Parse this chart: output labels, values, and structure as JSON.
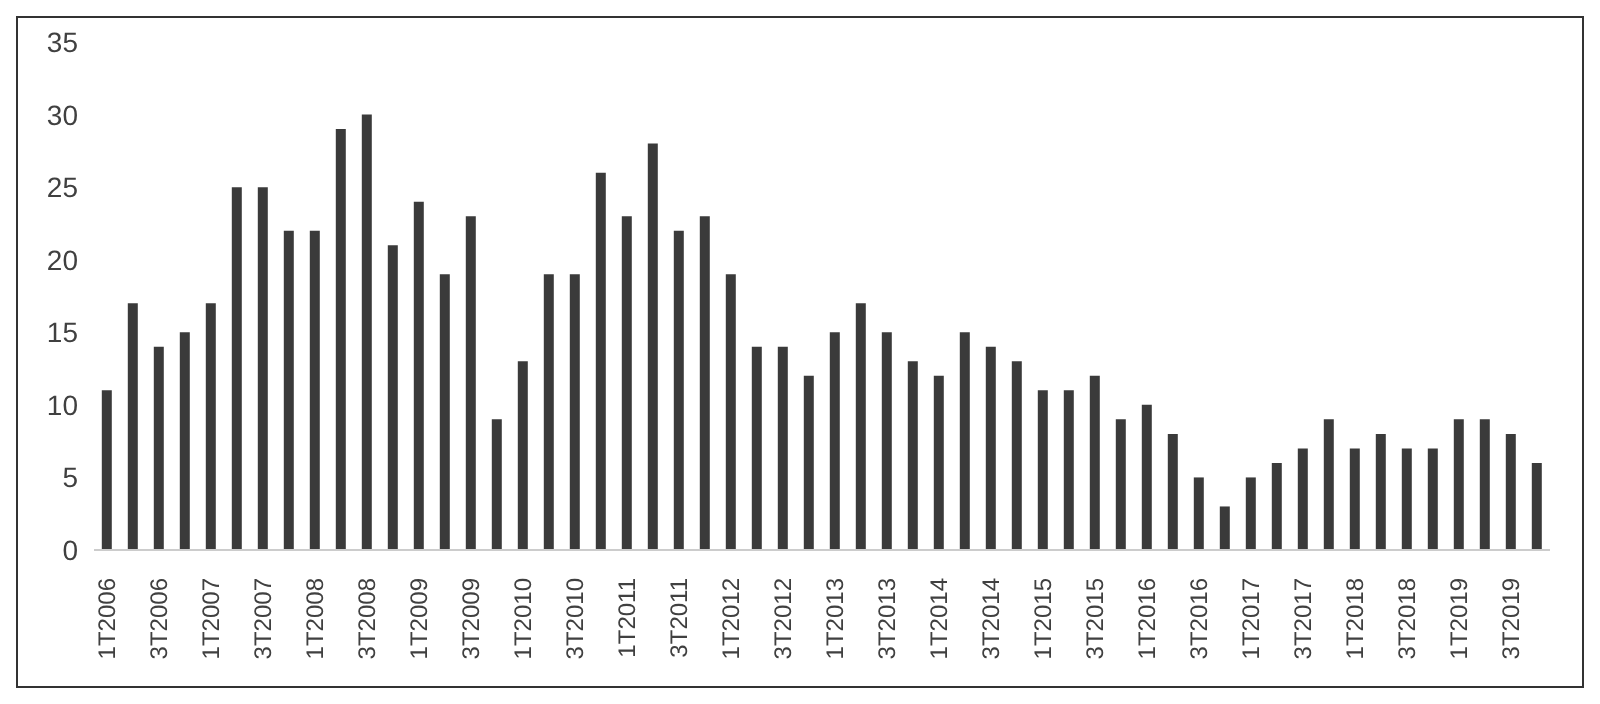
{
  "chart_data": {
    "type": "bar",
    "categories": [
      "1T2006",
      null,
      "3T2006",
      null,
      "1T2007",
      null,
      "3T2007",
      null,
      "1T2008",
      null,
      "3T2008",
      null,
      "1T2009",
      null,
      "3T2009",
      null,
      "1T2010",
      null,
      "3T2010",
      null,
      "1T2011",
      null,
      "3T2011",
      null,
      "1T2012",
      null,
      "3T2012",
      null,
      "1T2013",
      null,
      "3T2013",
      null,
      "1T2014",
      null,
      "3T2014",
      null,
      "1T2015",
      null,
      "3T2015",
      null,
      "1T2016",
      null,
      "3T2016",
      null,
      "1T2017",
      null,
      "3T2017",
      null,
      "1T2018",
      null,
      "3T2018",
      null,
      "1T2019",
      null,
      "3T2019",
      null
    ],
    "values": [
      11,
      17,
      14,
      15,
      17,
      25,
      25,
      22,
      22,
      29,
      30,
      21,
      24,
      19,
      23,
      9,
      13,
      19,
      19,
      26,
      23,
      28,
      22,
      23,
      19,
      14,
      14,
      12,
      15,
      17,
      15,
      13,
      12,
      15,
      14,
      13,
      11,
      11,
      12,
      9,
      10,
      8,
      5,
      3,
      5,
      6,
      7,
      9,
      7,
      8,
      7,
      7,
      9,
      9,
      8,
      6
    ],
    "color": "#3a3a3a",
    "ylim": [
      0,
      35
    ],
    "yticks": [
      0,
      5,
      10,
      15,
      20,
      25,
      30,
      35
    ],
    "grid": false,
    "legend": false
  }
}
